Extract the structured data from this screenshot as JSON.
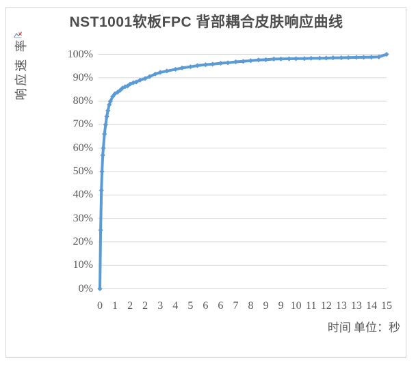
{
  "frame": {
    "background": "#ffffff",
    "border_color": "#d6d6d6"
  },
  "icons": {
    "top_left_artifact": "broken-image-icon"
  },
  "chart_data": {
    "type": "line",
    "title": "NST1001软板FPC 背部耦合皮肤响应曲线",
    "ylabel": "响应速 率",
    "xlabel": "时间 单位：秒",
    "x_tick_labels": [
      "0",
      "1",
      "2",
      "2",
      "3",
      "4",
      "5",
      "6",
      "6",
      "7",
      "8",
      "9",
      "9",
      "10",
      "11",
      "12",
      "13",
      "13",
      "14",
      "15"
    ],
    "y_tick_labels": [
      "0%",
      "10%",
      "20%",
      "30%",
      "40%",
      "50%",
      "60%",
      "70%",
      "80%",
      "90%",
      "100%"
    ],
    "xlim_seconds": [
      0,
      15
    ],
    "ylim": [
      0,
      100
    ],
    "grid": "horizontal",
    "legend": "none",
    "marker": "diamond",
    "line_color": "#5b9bd5",
    "gridline_color": "#d9d9d9",
    "text_color": "#595959",
    "points": [
      [
        0.0,
        0
      ],
      [
        0.04,
        25
      ],
      [
        0.08,
        42
      ],
      [
        0.11,
        50
      ],
      [
        0.15,
        57
      ],
      [
        0.18,
        60
      ],
      [
        0.24,
        66
      ],
      [
        0.3,
        70
      ],
      [
        0.36,
        73.5
      ],
      [
        0.42,
        76
      ],
      [
        0.49,
        78.5
      ],
      [
        0.55,
        80
      ],
      [
        0.67,
        82
      ],
      [
        0.79,
        83.2
      ],
      [
        0.92,
        83.8
      ],
      [
        1.05,
        84.6
      ],
      [
        1.18,
        85.6
      ],
      [
        1.32,
        86.2
      ],
      [
        1.45,
        86.5
      ],
      [
        1.58,
        87.3
      ],
      [
        1.75,
        87.9
      ],
      [
        1.9,
        88.2
      ],
      [
        2.1,
        89.0
      ],
      [
        2.37,
        89.7
      ],
      [
        2.6,
        90.5
      ],
      [
        2.9,
        91.6
      ],
      [
        3.16,
        92.3
      ],
      [
        3.5,
        92.9
      ],
      [
        3.95,
        93.6
      ],
      [
        4.3,
        94.2
      ],
      [
        4.74,
        94.7
      ],
      [
        5.1,
        95.2
      ],
      [
        5.53,
        95.6
      ],
      [
        5.9,
        95.8
      ],
      [
        6.32,
        96.2
      ],
      [
        6.7,
        96.4
      ],
      [
        7.11,
        96.8
      ],
      [
        7.5,
        97.0
      ],
      [
        7.89,
        97.3
      ],
      [
        8.3,
        97.6
      ],
      [
        8.68,
        97.7
      ],
      [
        9.1,
        98.0
      ],
      [
        9.47,
        98.05
      ],
      [
        9.9,
        98.1
      ],
      [
        10.26,
        98.15
      ],
      [
        10.7,
        98.2
      ],
      [
        11.05,
        98.3
      ],
      [
        11.5,
        98.35
      ],
      [
        11.84,
        98.4
      ],
      [
        12.2,
        98.5
      ],
      [
        12.63,
        98.55
      ],
      [
        13.0,
        98.6
      ],
      [
        13.42,
        98.7
      ],
      [
        13.8,
        98.75
      ],
      [
        14.21,
        98.8
      ],
      [
        14.6,
        98.9
      ],
      [
        15.0,
        100
      ]
    ]
  }
}
